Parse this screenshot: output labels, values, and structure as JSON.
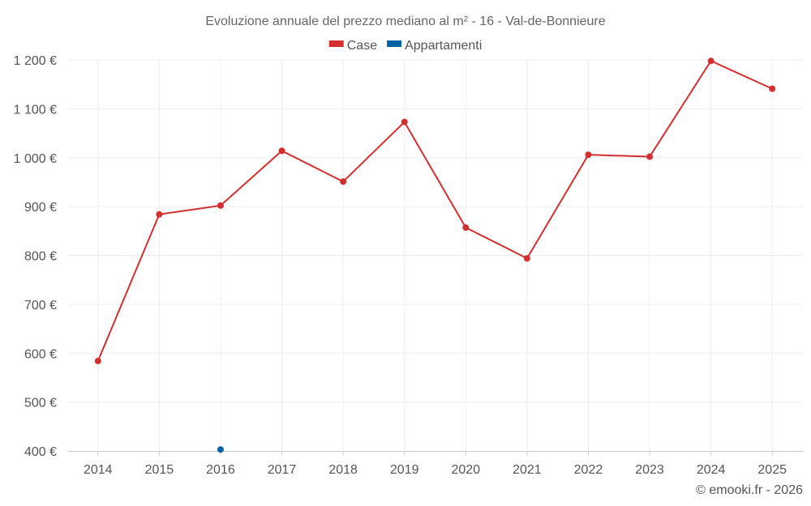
{
  "chart_data": {
    "type": "line",
    "title": "Evoluzione annuale del prezzo mediano al m² - 16 - Val-de-Bonnieure",
    "categories": [
      "2014",
      "2015",
      "2016",
      "2017",
      "2018",
      "2019",
      "2020",
      "2021",
      "2022",
      "2023",
      "2024",
      "2025"
    ],
    "ylim": [
      400,
      1200
    ],
    "yticks": [
      400,
      500,
      600,
      700,
      800,
      900,
      1000,
      1100,
      1200
    ],
    "ytick_labels": [
      "400 €",
      "500 €",
      "600 €",
      "700 €",
      "800 €",
      "900 €",
      "1 000 €",
      "1 100 €",
      "1 200 €"
    ],
    "series": [
      {
        "name": "Case",
        "color": "#d32f2f",
        "values": [
          584,
          884,
          902,
          1014,
          951,
          1073,
          857,
          794,
          1006,
          1002,
          1198,
          1141
        ]
      },
      {
        "name": "Appartamenti",
        "color": "#0063a6",
        "values": [
          null,
          null,
          403,
          null,
          null,
          null,
          null,
          null,
          null,
          null,
          null,
          null
        ]
      }
    ],
    "legend_position": "top-center",
    "grid": true
  },
  "credit": "© emooki.fr - 2026"
}
